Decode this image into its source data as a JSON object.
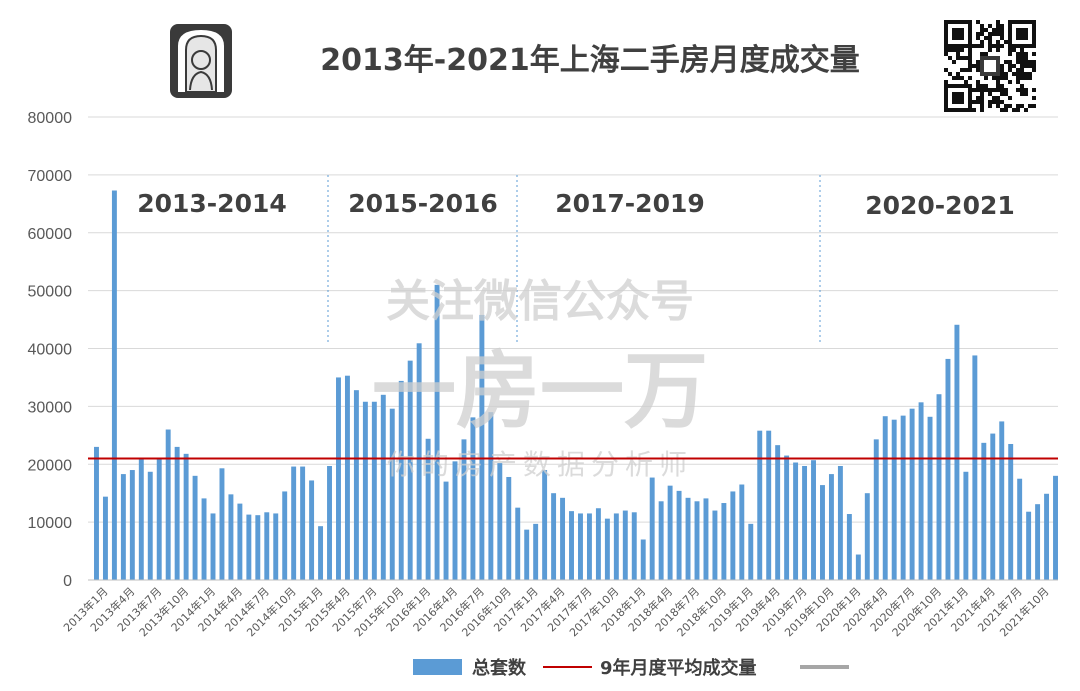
{
  "title": "2013年-2021年上海二手房月度成交量",
  "watermark": {
    "line1": "关注微信公众号",
    "line2": "一房一万",
    "line3": "你的房产数据分析师"
  },
  "logo_icon": "portrait-logo-icon",
  "qr_icon": "qr-code-icon",
  "periods": [
    "2013-2014",
    "2015-2016",
    "2017-2019",
    "2020-2021"
  ],
  "legend": {
    "bar_label": "总套数",
    "line_label": "9年月度平均成交量"
  },
  "colors": {
    "bar": "#5b9bd5",
    "avg_line": "#c00000",
    "legend_extra": "#a6a6a6",
    "grid": "#d9d9d9",
    "divider": "#5b9bd5"
  },
  "chart_data": {
    "type": "bar",
    "title": "2013年-2021年上海二手房月度成交量",
    "xlabel": "",
    "ylabel": "",
    "ylim": [
      0,
      80000
    ],
    "yticks": [
      0,
      10000,
      20000,
      30000,
      40000,
      50000,
      60000,
      70000,
      80000
    ],
    "grid": true,
    "legend_position": "bottom",
    "x_tick_labels": [
      "2013年1月",
      "2013年4月",
      "2013年7月",
      "2013年10月",
      "2014年1月",
      "2014年4月",
      "2014年7月",
      "2014年10月",
      "2015年1月",
      "2015年4月",
      "2015年7月",
      "2015年10月",
      "2016年1月",
      "2016年4月",
      "2016年7月",
      "2016年10月",
      "2017年1月",
      "2017年4月",
      "2017年7月",
      "2017年10月",
      "2018年1月",
      "2018年4月",
      "2018年7月",
      "2018年10月",
      "2019年1月",
      "2019年4月",
      "2019年7月",
      "2019年10月",
      "2020年1月",
      "2020年4月",
      "2020年7月",
      "2020年10月",
      "2021年1月",
      "2021年4月",
      "2021年7月",
      "2021年10月"
    ],
    "series": [
      {
        "name": "总套数",
        "type": "bar",
        "values": [
          23000,
          14400,
          67300,
          18300,
          19000,
          21000,
          18700,
          21000,
          26000,
          23000,
          21800,
          18000,
          14100,
          11500,
          19300,
          14800,
          13200,
          11300,
          11200,
          11700,
          11500,
          15300,
          19600,
          19600,
          17200,
          9300,
          19700,
          35000,
          35300,
          32800,
          30800,
          30800,
          32000,
          29600,
          34400,
          37900,
          40900,
          24400,
          51000,
          17000,
          20500,
          24300,
          28100,
          45800,
          29000,
          20200,
          17800,
          12500,
          8700,
          9700,
          19000,
          15000,
          14200,
          11900,
          11500,
          11500,
          12400,
          10600,
          11500,
          12000,
          11700,
          7000,
          17700,
          13600,
          16300,
          15400,
          14200,
          13600,
          14100,
          12000,
          13300,
          15300,
          16500,
          9700,
          25800,
          25800,
          23300,
          21500,
          20300,
          19700,
          20700,
          16400,
          18300,
          19700,
          11400,
          4400,
          15000,
          24300,
          28300,
          27700,
          28400,
          29600,
          30700,
          28200,
          32100,
          38200,
          44100,
          18700,
          38800,
          23700,
          25300,
          27400,
          23500,
          17500,
          11800,
          13100,
          14900,
          18000
        ]
      },
      {
        "name": "9年月度平均成交量",
        "type": "line",
        "value": 21000
      }
    ]
  }
}
